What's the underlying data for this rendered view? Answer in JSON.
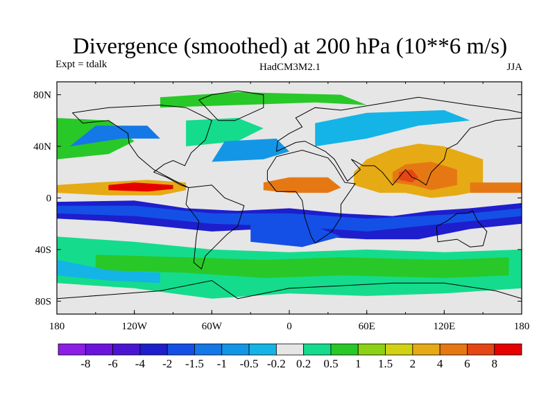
{
  "chart_data": {
    "type": "heatmap",
    "title": "Divergence (smoothed) at 200 hPa (10**6 m/s)",
    "left_label": "Expt = tdalk",
    "center_label": "HadCM3M2.1",
    "right_label": "JJA",
    "x_ticks": [
      {
        "value": -180,
        "label": "180"
      },
      {
        "value": -120,
        "label": "120W"
      },
      {
        "value": -60,
        "label": "60W"
      },
      {
        "value": 0,
        "label": "0"
      },
      {
        "value": 60,
        "label": "60E"
      },
      {
        "value": 120,
        "label": "120E"
      },
      {
        "value": 180,
        "label": "180"
      }
    ],
    "y_ticks": [
      {
        "value": 80,
        "label": "80N"
      },
      {
        "value": 40,
        "label": "40N"
      },
      {
        "value": 0,
        "label": "0"
      },
      {
        "value": -40,
        "label": "40S"
      },
      {
        "value": -80,
        "label": "80S"
      }
    ],
    "xlim": [
      -180,
      180
    ],
    "ylim": [
      -90,
      90
    ],
    "colorbar": {
      "levels": [
        "-8",
        "-6",
        "-4",
        "-2",
        "-1.5",
        "-1",
        "-0.5",
        "-0.2",
        "0.2",
        "0.5",
        "1",
        "1.5",
        "2",
        "4",
        "6",
        "8"
      ],
      "colors": [
        "#8c1ee6",
        "#6a14dc",
        "#4b14d2",
        "#1e1ecd",
        "#1450e6",
        "#1478e6",
        "#1496e6",
        "#14b4e6",
        "#e6e6e6",
        "#14dc8c",
        "#28c828",
        "#8cd214",
        "#d2d214",
        "#e6aa14",
        "#e67814",
        "#e64614",
        "#e60000"
      ]
    },
    "bands": [
      {
        "name": "eq-pacific-convergence",
        "color": "#1e1ecd",
        "points": [
          [
            -180,
            -3
          ],
          [
            -120,
            -2
          ],
          [
            -80,
            -8
          ],
          [
            -40,
            -10
          ],
          [
            0,
            -8
          ],
          [
            40,
            -12
          ],
          [
            80,
            -14
          ],
          [
            110,
            -10
          ],
          [
            140,
            -8
          ],
          [
            180,
            -4
          ],
          [
            180,
            -20
          ],
          [
            140,
            -24
          ],
          [
            100,
            -32
          ],
          [
            60,
            -32
          ],
          [
            20,
            -30
          ],
          [
            -20,
            -24
          ],
          [
            -60,
            -26
          ],
          [
            -100,
            -22
          ],
          [
            -140,
            -18
          ],
          [
            -180,
            -16
          ]
        ]
      },
      {
        "name": "eq-pacific-convergence-core",
        "color": "#1450e6",
        "points": [
          [
            -180,
            -6
          ],
          [
            -120,
            -6
          ],
          [
            -60,
            -12
          ],
          [
            0,
            -12
          ],
          [
            60,
            -16
          ],
          [
            100,
            -14
          ],
          [
            140,
            -12
          ],
          [
            180,
            -8
          ],
          [
            180,
            -14
          ],
          [
            120,
            -20
          ],
          [
            60,
            -26
          ],
          [
            0,
            -22
          ],
          [
            -60,
            -20
          ],
          [
            -120,
            -14
          ],
          [
            -180,
            -12
          ]
        ]
      },
      {
        "name": "sh-midlat-positive",
        "color": "#14dc8c",
        "points": [
          [
            -180,
            -30
          ],
          [
            -120,
            -34
          ],
          [
            -60,
            -40
          ],
          [
            0,
            -42
          ],
          [
            60,
            -40
          ],
          [
            120,
            -42
          ],
          [
            180,
            -40
          ],
          [
            180,
            -70
          ],
          [
            120,
            -74
          ],
          [
            60,
            -76
          ],
          [
            0,
            -74
          ],
          [
            -60,
            -78
          ],
          [
            -120,
            -70
          ],
          [
            -180,
            -66
          ]
        ]
      },
      {
        "name": "sh-midlat-green",
        "color": "#28c828",
        "points": [
          [
            -150,
            -44
          ],
          [
            -80,
            -46
          ],
          [
            -20,
            -48
          ],
          [
            40,
            -46
          ],
          [
            120,
            -48
          ],
          [
            170,
            -46
          ],
          [
            170,
            -60
          ],
          [
            120,
            -62
          ],
          [
            40,
            -60
          ],
          [
            -20,
            -62
          ],
          [
            -80,
            -58
          ],
          [
            -150,
            -56
          ]
        ]
      },
      {
        "name": "sh-cyan-band",
        "color": "#14b4e6",
        "points": [
          [
            -180,
            -48
          ],
          [
            -140,
            -56
          ],
          [
            -100,
            -58
          ],
          [
            -100,
            -66
          ],
          [
            -140,
            -64
          ],
          [
            -180,
            -60
          ]
        ]
      },
      {
        "name": "itcz-pacific",
        "color": "#e6aa14",
        "points": [
          [
            -180,
            4
          ],
          [
            -140,
            2
          ],
          [
            -100,
            2
          ],
          [
            -80,
            6
          ],
          [
            -80,
            12
          ],
          [
            -110,
            14
          ],
          [
            -150,
            12
          ],
          [
            -180,
            10
          ]
        ]
      },
      {
        "name": "itcz-pacific-core",
        "color": "#e60000",
        "points": [
          [
            -140,
            6
          ],
          [
            -110,
            5
          ],
          [
            -90,
            7
          ],
          [
            -90,
            10
          ],
          [
            -120,
            12
          ],
          [
            -140,
            10
          ]
        ]
      },
      {
        "name": "africa-positive",
        "color": "#e67814",
        "points": [
          [
            -20,
            6
          ],
          [
            0,
            4
          ],
          [
            30,
            4
          ],
          [
            40,
            8
          ],
          [
            30,
            16
          ],
          [
            0,
            16
          ],
          [
            -20,
            12
          ]
        ]
      },
      {
        "name": "asia-monsoon",
        "color": "#e6aa14",
        "points": [
          [
            50,
            10
          ],
          [
            70,
            4
          ],
          [
            90,
            4
          ],
          [
            110,
            0
          ],
          [
            130,
            2
          ],
          [
            150,
            6
          ],
          [
            150,
            30
          ],
          [
            120,
            40
          ],
          [
            100,
            42
          ],
          [
            80,
            38
          ],
          [
            60,
            30
          ],
          [
            50,
            20
          ]
        ]
      },
      {
        "name": "asia-monsoon-core",
        "color": "#e67814",
        "points": [
          [
            80,
            12
          ],
          [
            95,
            10
          ],
          [
            110,
            6
          ],
          [
            130,
            10
          ],
          [
            130,
            22
          ],
          [
            110,
            28
          ],
          [
            90,
            26
          ],
          [
            80,
            20
          ]
        ]
      },
      {
        "name": "asia-monsoon-peak",
        "color": "#e64614",
        "points": [
          [
            85,
            14
          ],
          [
            95,
            12
          ],
          [
            100,
            16
          ],
          [
            95,
            22
          ],
          [
            85,
            20
          ]
        ]
      },
      {
        "name": "west-pacific-positive",
        "color": "#e67814",
        "points": [
          [
            140,
            4
          ],
          [
            180,
            4
          ],
          [
            180,
            12
          ],
          [
            140,
            12
          ]
        ]
      },
      {
        "name": "nh-midlat-green",
        "color": "#28c828",
        "points": [
          [
            -180,
            30
          ],
          [
            -140,
            34
          ],
          [
            -120,
            44
          ],
          [
            -140,
            60
          ],
          [
            -180,
            62
          ]
        ]
      },
      {
        "name": "nh-midlat-green-2",
        "color": "#14dc8c",
        "points": [
          [
            -80,
            40
          ],
          [
            -40,
            44
          ],
          [
            -20,
            54
          ],
          [
            -40,
            62
          ],
          [
            -80,
            60
          ]
        ]
      },
      {
        "name": "nh-midlat-neg",
        "color": "#1478e6",
        "points": [
          [
            -170,
            40
          ],
          [
            -130,
            46
          ],
          [
            -100,
            46
          ],
          [
            -110,
            56
          ],
          [
            -150,
            56
          ]
        ]
      },
      {
        "name": "atlantic-neg",
        "color": "#1496e6",
        "points": [
          [
            -60,
            28
          ],
          [
            -20,
            30
          ],
          [
            0,
            36
          ],
          [
            -10,
            46
          ],
          [
            -50,
            44
          ]
        ]
      },
      {
        "name": "eurasia-neg",
        "color": "#14b4e6",
        "points": [
          [
            20,
            40
          ],
          [
            60,
            46
          ],
          [
            100,
            56
          ],
          [
            140,
            60
          ],
          [
            120,
            68
          ],
          [
            60,
            66
          ],
          [
            20,
            58
          ]
        ]
      },
      {
        "name": "arctic-green",
        "color": "#28c828",
        "points": [
          [
            -100,
            70
          ],
          [
            -40,
            72
          ],
          [
            20,
            74
          ],
          [
            60,
            72
          ],
          [
            40,
            80
          ],
          [
            -40,
            82
          ],
          [
            -100,
            78
          ]
        ]
      },
      {
        "name": "south-atlantic-neg",
        "color": "#1450e6",
        "points": [
          [
            -30,
            -20
          ],
          [
            20,
            -22
          ],
          [
            40,
            -30
          ],
          [
            10,
            -38
          ],
          [
            -30,
            -34
          ]
        ]
      }
    ]
  }
}
